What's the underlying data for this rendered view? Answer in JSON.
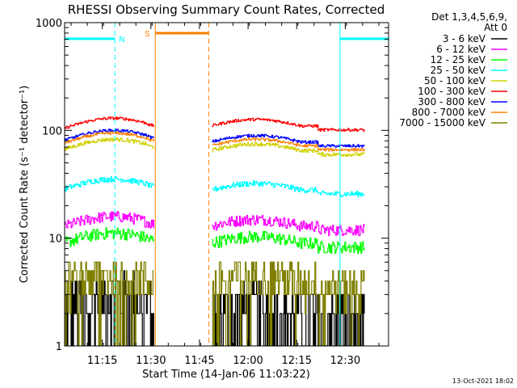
{
  "chart_data": {
    "type": "line",
    "title": "RHESSI Observing Summary Count Rates, Corrected",
    "xlabel": "Start Time (14-Jan-06 11:03:22)",
    "ylabel": "Corrected Count Rate (s⁻¹ detector⁻¹)",
    "yscale": "log",
    "xlim_minutes_from_start": [
      0,
      100
    ],
    "ylim": [
      1,
      1000
    ],
    "x_ticks": [
      "11:15",
      "11:30",
      "11:45",
      "12:00",
      "12:15",
      "12:30"
    ],
    "y_ticks": [
      "1",
      "10",
      "100",
      "1000"
    ],
    "legend": {
      "placement": "outside-right",
      "header": [
        "Det 1,3,4,5,6,9,",
        "Att 0"
      ]
    },
    "timestamp": "13-Oct-2021 18:02",
    "gaps": [
      [
        28,
        45
      ]
    ],
    "flags": [
      {
        "label": "N",
        "color": "#00ffff",
        "segments": [
          [
            0,
            15.5
          ],
          [
            85,
            100
          ]
        ]
      },
      {
        "label": "S",
        "color": "#ff8000",
        "segments": [
          [
            28,
            44.5
          ]
        ]
      }
    ],
    "series": [
      {
        "name": "3 - 6 keV",
        "color": "#000000",
        "v1": 2.5,
        "v2": 2.0,
        "noise": 0.7
      },
      {
        "name": "6 - 12 keV",
        "color": "#ff00ff",
        "v1": 13.5,
        "v2": 13.0,
        "noise": 0.12
      },
      {
        "name": "12 - 25 keV",
        "color": "#00ff00",
        "v1": 9.5,
        "v2": 9.0,
        "noise": 0.13
      },
      {
        "name": "25 - 50 keV",
        "color": "#00ffff",
        "v1": 30,
        "v2": 28,
        "noise": 0.06
      },
      {
        "name": "50 - 100 keV",
        "color": "#d0d000",
        "v1": 70,
        "v2": 65,
        "noise": 0.04
      },
      {
        "name": "100 - 300 keV",
        "color": "#ff0000",
        "v1": 110,
        "v2": 110,
        "noise": 0.03
      },
      {
        "name": "300 - 800 keV",
        "color": "#0000ff",
        "v1": 85,
        "v2": 78,
        "noise": 0.03
      },
      {
        "name": "800 - 7000 keV",
        "color": "#ff8000",
        "v1": 80,
        "v2": 72,
        "noise": 0.03
      },
      {
        "name": "7000 - 15000 keV",
        "color": "#808000",
        "v1": 4.0,
        "v2": 4.0,
        "noise": 0.45
      }
    ]
  }
}
